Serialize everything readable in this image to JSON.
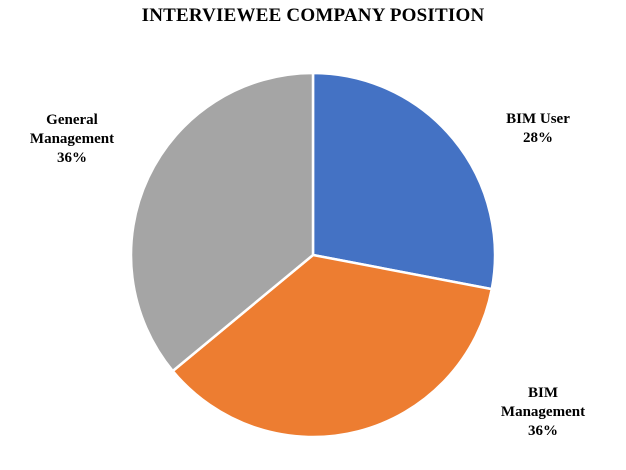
{
  "chart_data": {
    "type": "pie",
    "title": "INTERVIEWEE COMPANY POSITION",
    "slices": [
      {
        "label_lines": [
          "BIM User"
        ],
        "percent_label": "28%",
        "value": 28,
        "color": "#4472C4"
      },
      {
        "label_lines": [
          "BIM",
          "Management"
        ],
        "percent_label": "36%",
        "value": 36,
        "color": "#ED7D31"
      },
      {
        "label_lines": [
          "General",
          "Management"
        ],
        "percent_label": "36%",
        "value": 36,
        "color": "#A5A5A5"
      }
    ],
    "start_angle": "12 o'clock",
    "direction": "clockwise"
  }
}
